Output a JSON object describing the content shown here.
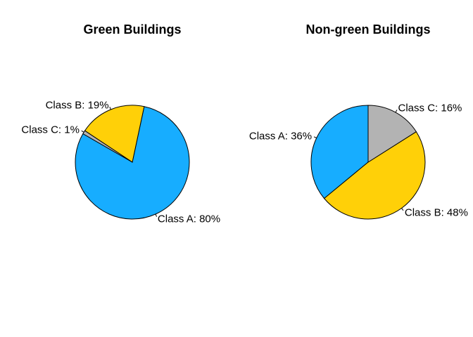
{
  "chart_data": [
    {
      "type": "pie",
      "title": "Green Buildings",
      "slices": [
        {
          "label": "Class A",
          "value": 80,
          "display": "Class A: 80%",
          "color": "#17ADFF"
        },
        {
          "label": "Class B",
          "value": 19,
          "display": "Class B: 19%",
          "color": "#FFD008"
        },
        {
          "label": "Class C",
          "value": 1,
          "display": "Class C: 1%",
          "color": "#B3B3B3"
        }
      ],
      "start_angle_deg": 150,
      "direction": "counterclockwise"
    },
    {
      "type": "pie",
      "title": "Non-green Buildings",
      "slices": [
        {
          "label": "Class A",
          "value": 36,
          "display": "Class A: 36%",
          "color": "#17ADFF"
        },
        {
          "label": "Class B",
          "value": 48,
          "display": "Class B: 48%",
          "color": "#FFD008"
        },
        {
          "label": "Class C",
          "value": 16,
          "display": "Class C: 16%",
          "color": "#B3B3B3"
        }
      ],
      "start_angle_deg": 90,
      "direction": "counterclockwise"
    }
  ]
}
